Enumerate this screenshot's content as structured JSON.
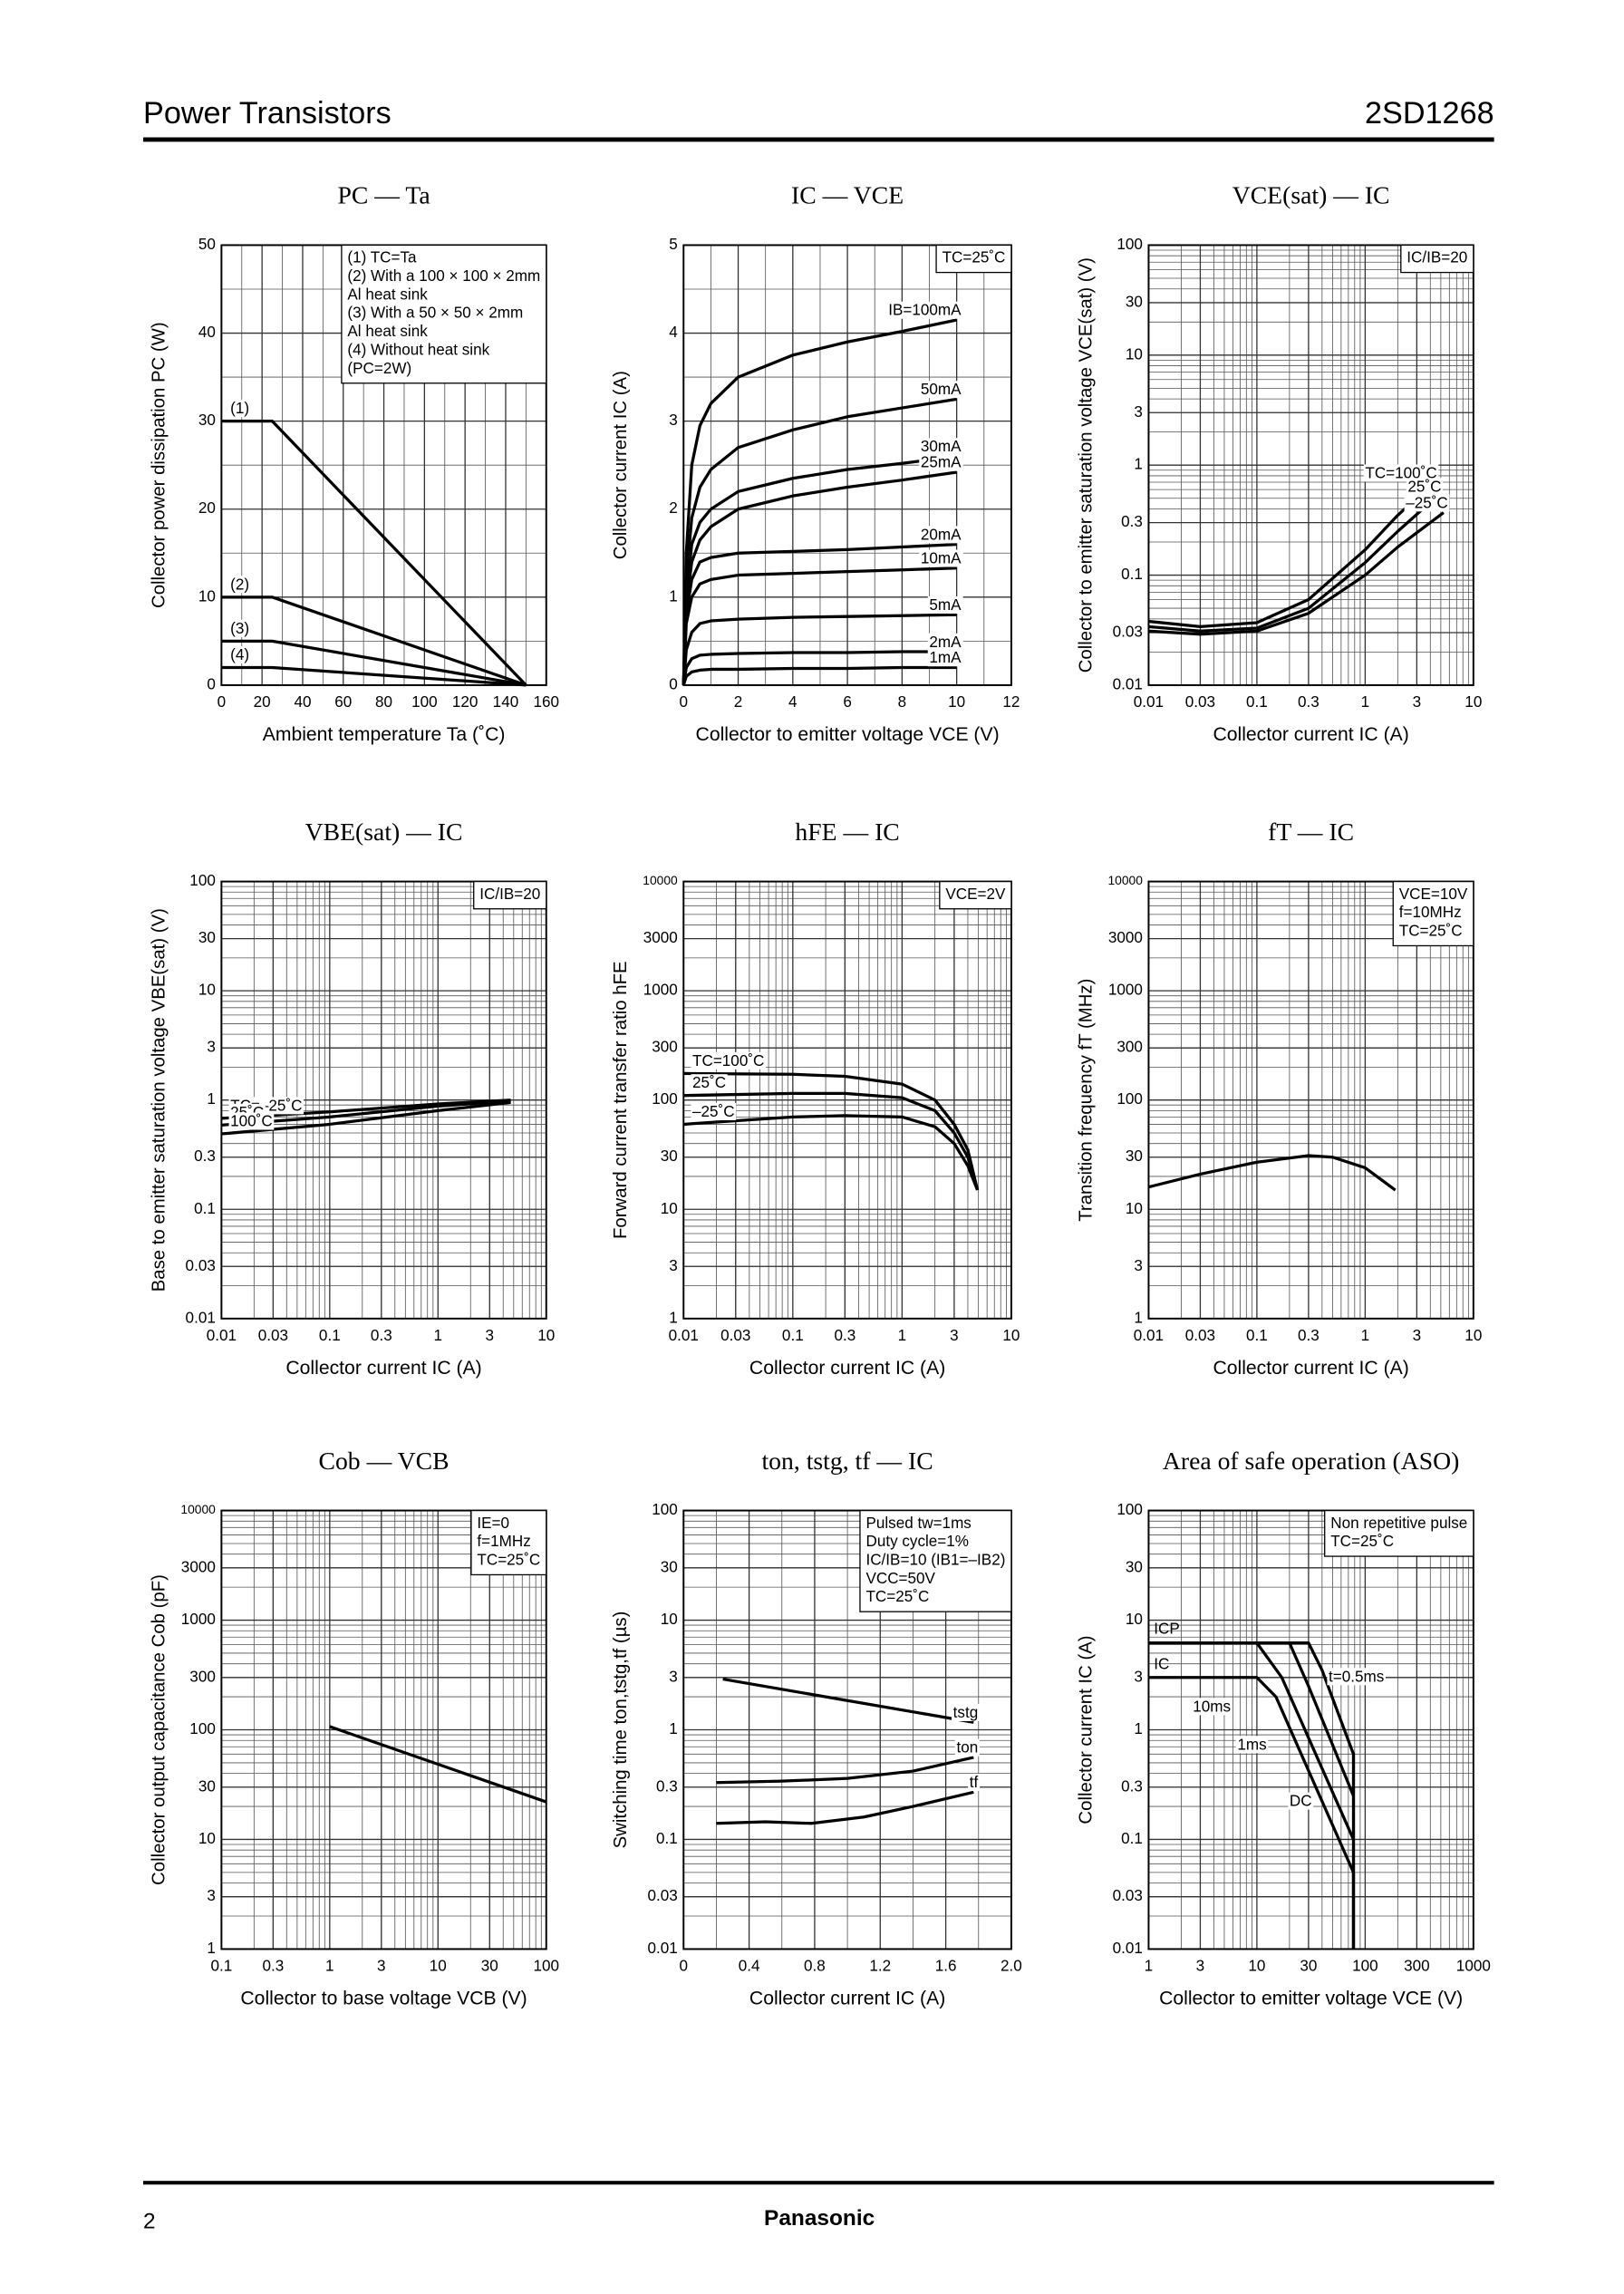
{
  "header": {
    "left": "Power Transistors",
    "right": "2SD1268"
  },
  "footer": {
    "page": "2",
    "brand": "Panasonic"
  },
  "chart_data": [
    {
      "type": "line",
      "title": "PC — Ta",
      "xlabel": "Ambient temperature   Ta  (˚C)",
      "ylabel": "Collector power dissipation   PC   (W)",
      "xscale": "linear",
      "yscale": "linear",
      "xlim": [
        0,
        160
      ],
      "xticks": [
        0,
        20,
        40,
        60,
        80,
        100,
        120,
        140,
        160
      ],
      "ylim": [
        0,
        50
      ],
      "yticks": [
        0,
        10,
        20,
        30,
        40,
        50
      ],
      "grid": true,
      "note_corner": "top right",
      "label_position": "start",
      "notes": [
        "(1) TC=Ta",
        "(2) With a 100 × 100 × 2mm",
        "      Al heat sink",
        "(3) With a 50 × 50 × 2mm",
        "      Al heat sink",
        "(4) Without heat sink",
        "      (PC=2W)"
      ],
      "x": [
        0,
        25,
        150
      ],
      "series": [
        {
          "name": "(1)",
          "color": "#000",
          "values": [
            30,
            30,
            0
          ]
        },
        {
          "name": "(2)",
          "color": "#000",
          "values": [
            10,
            10,
            0
          ]
        },
        {
          "name": "(3)",
          "color": "#000",
          "values": [
            5,
            5,
            0
          ]
        },
        {
          "name": "(4)",
          "color": "#000",
          "values": [
            2,
            2,
            0
          ]
        }
      ]
    },
    {
      "type": "line",
      "title": "IC — VCE",
      "xlabel": "Collector to emitter voltage   VCE   (V)",
      "ylabel": "Collector current   IC   (A)",
      "xscale": "linear",
      "yscale": "linear",
      "xlim": [
        0,
        12
      ],
      "xticks": [
        0,
        2,
        4,
        6,
        8,
        10,
        12
      ],
      "ylim": [
        0,
        5
      ],
      "yticks": [
        0,
        1,
        2,
        3,
        4,
        5
      ],
      "grid": true,
      "note_corner": "top right",
      "label_position": "end",
      "notes": [
        "TC=25˚C"
      ],
      "x": [
        0,
        0.1,
        0.3,
        0.6,
        1,
        2,
        4,
        6,
        8,
        10
      ],
      "series": [
        {
          "name": "IB=100mA",
          "color": "#000",
          "values": [
            0,
            1.5,
            2.5,
            2.95,
            3.2,
            3.5,
            3.75,
            3.9,
            4.02,
            4.15
          ]
        },
        {
          "name": "50mA",
          "color": "#000",
          "values": [
            0,
            1.2,
            1.9,
            2.25,
            2.45,
            2.7,
            2.9,
            3.05,
            3.15,
            3.25
          ]
        },
        {
          "name": "30mA",
          "color": "#000",
          "values": [
            0,
            1.0,
            1.6,
            1.85,
            2.0,
            2.2,
            2.35,
            2.45,
            2.52,
            2.6
          ]
        },
        {
          "name": "25mA",
          "color": "#000",
          "values": [
            0,
            0.9,
            1.4,
            1.65,
            1.8,
            2.0,
            2.15,
            2.25,
            2.33,
            2.42
          ]
        },
        {
          "name": "20mA",
          "color": "#000",
          "values": [
            0,
            0.8,
            1.2,
            1.4,
            1.45,
            1.5,
            1.52,
            1.54,
            1.57,
            1.6
          ]
        },
        {
          "name": "10mA",
          "color": "#000",
          "values": [
            0,
            0.7,
            1.0,
            1.15,
            1.2,
            1.25,
            1.27,
            1.29,
            1.31,
            1.33
          ]
        },
        {
          "name": "5mA",
          "color": "#000",
          "values": [
            0,
            0.4,
            0.6,
            0.7,
            0.73,
            0.75,
            0.77,
            0.78,
            0.79,
            0.8
          ]
        },
        {
          "name": "2mA",
          "color": "#000",
          "values": [
            0,
            0.2,
            0.3,
            0.34,
            0.35,
            0.36,
            0.37,
            0.37,
            0.38,
            0.38
          ]
        },
        {
          "name": "1mA",
          "color": "#000",
          "values": [
            0,
            0.1,
            0.15,
            0.17,
            0.18,
            0.18,
            0.19,
            0.19,
            0.2,
            0.2
          ]
        }
      ]
    },
    {
      "type": "line",
      "title": "VCE(sat) — IC",
      "xlabel": "Collector current   IC   (A)",
      "ylabel": "Collector to emitter saturation voltage   VCE(sat)   (V)",
      "xscale": "log",
      "yscale": "log",
      "xlim": [
        0.01,
        10
      ],
      "xticks": [
        0.01,
        0.03,
        0.1,
        0.3,
        1,
        3,
        10
      ],
      "ylim": [
        0.01,
        100
      ],
      "yticks": [
        0.01,
        0.03,
        0.1,
        0.3,
        1,
        3,
        10,
        30,
        100
      ],
      "grid": true,
      "note_corner": "top right",
      "label_position": "end",
      "notes": [
        "IC/IB=20"
      ],
      "series": [
        {
          "name": "TC=100˚C",
          "color": "#000",
          "x": [
            0.01,
            0.03,
            0.1,
            0.3,
            1,
            2,
            4.2
          ],
          "values": [
            0.038,
            0.034,
            0.037,
            0.06,
            0.17,
            0.35,
            0.69
          ]
        },
        {
          "name": "25˚C",
          "color": "#000",
          "x": [
            0.01,
            0.03,
            0.1,
            0.3,
            1,
            2,
            4.6
          ],
          "values": [
            0.034,
            0.031,
            0.033,
            0.05,
            0.13,
            0.25,
            0.52
          ]
        },
        {
          "name": "–25˚C",
          "color": "#000",
          "x": [
            0.01,
            0.03,
            0.1,
            0.3,
            1,
            2,
            5.3
          ],
          "values": [
            0.031,
            0.029,
            0.031,
            0.045,
            0.1,
            0.18,
            0.37
          ]
        }
      ]
    },
    {
      "type": "line",
      "title": "VBE(sat) — IC",
      "xlabel": "Collector current   IC   (A)",
      "ylabel": "Base to emitter saturation voltage   VBE(sat)   (V)",
      "xscale": "log",
      "yscale": "log",
      "xlim": [
        0.01,
        10
      ],
      "xticks": [
        0.01,
        0.03,
        0.1,
        0.3,
        1,
        3,
        10
      ],
      "ylim": [
        0.01,
        100
      ],
      "yticks": [
        0.01,
        0.03,
        0.1,
        0.3,
        1,
        3,
        10,
        30,
        100
      ],
      "grid": true,
      "note_corner": "top right",
      "label_position": "start",
      "notes": [
        "IC/IB=20"
      ],
      "x": [
        0.01,
        0.1,
        1,
        4.7
      ],
      "series": [
        {
          "name": "TC=–25˚C",
          "color": "#000",
          "values": [
            0.68,
            0.78,
            0.92,
            1.0
          ]
        },
        {
          "name": "25˚C",
          "color": "#000",
          "values": [
            0.59,
            0.7,
            0.88,
            0.98
          ]
        },
        {
          "name": "100˚C",
          "color": "#000",
          "values": [
            0.49,
            0.6,
            0.8,
            0.95
          ]
        }
      ]
    },
    {
      "type": "line",
      "title": "hFE — IC",
      "xlabel": "Collector current   IC   (A)",
      "ylabel": "Forward current transfer ratio  hFE",
      "xscale": "log",
      "yscale": "log",
      "xlim": [
        0.01,
        10
      ],
      "xticks": [
        0.01,
        0.03,
        0.1,
        0.3,
        1,
        3,
        10
      ],
      "ylim": [
        1,
        10000
      ],
      "yticks": [
        1,
        3,
        10,
        30,
        100,
        300,
        1000,
        3000,
        10000
      ],
      "grid": true,
      "note_corner": "top right",
      "label_position": "start",
      "notes": [
        "VCE=2V"
      ],
      "x": [
        0.01,
        0.1,
        0.3,
        1,
        2,
        3,
        4,
        4.9
      ],
      "series": [
        {
          "name": "TC=100˚C",
          "color": "#000",
          "values": [
            175,
            172,
            165,
            140,
            100,
            60,
            35,
            15
          ]
        },
        {
          "name": "25˚C",
          "color": "#000",
          "values": [
            110,
            115,
            115,
            105,
            80,
            50,
            30,
            15
          ]
        },
        {
          "name": "–25˚C",
          "color": "#000",
          "values": [
            60,
            70,
            72,
            70,
            57,
            40,
            25,
            15
          ]
        }
      ]
    },
    {
      "type": "line",
      "title": "fT — IC",
      "xlabel": "Collector current   IC   (A)",
      "ylabel": "Transition frequency   fT   (MHz)",
      "xscale": "log",
      "yscale": "log",
      "xlim": [
        0.01,
        10
      ],
      "xticks": [
        0.01,
        0.03,
        0.1,
        0.3,
        1,
        3,
        10
      ],
      "ylim": [
        1,
        10000
      ],
      "yticks": [
        1,
        3,
        10,
        30,
        100,
        300,
        1000,
        3000,
        10000
      ],
      "grid": true,
      "note_corner": "top right",
      "notes": [
        "VCE=10V",
        "f=10MHz",
        "TC=25˚C"
      ],
      "x": [
        0.01,
        0.03,
        0.1,
        0.3,
        0.5,
        1,
        1.9
      ],
      "series": [
        {
          "color": "#000",
          "values": [
            16,
            21,
            27,
            31,
            30,
            24,
            15
          ]
        }
      ]
    },
    {
      "type": "line",
      "title": "Cob — VCB",
      "xlabel": "Collector to base voltage   VCB   (V)",
      "ylabel": "Collector output capacitance   Cob   (pF)",
      "xscale": "log",
      "yscale": "log",
      "xlim": [
        0.1,
        100
      ],
      "xticks": [
        0.1,
        0.3,
        1,
        3,
        10,
        30,
        100
      ],
      "ylim": [
        1,
        10000
      ],
      "yticks": [
        1,
        3,
        10,
        30,
        100,
        300,
        1000,
        3000,
        10000
      ],
      "grid": true,
      "note_corner": "top right",
      "notes": [
        "IE=0",
        "f=1MHz",
        "TC=25˚C"
      ],
      "x": [
        1,
        100
      ],
      "series": [
        {
          "color": "#000",
          "values": [
            107,
            22
          ]
        }
      ]
    },
    {
      "type": "line",
      "title": "ton, tstg, tf — IC",
      "xlabel": "Collector current   IC   (A)",
      "ylabel": "Switching time   ton,tstg,tf   (µs)",
      "xscale": "linear",
      "yscale": "log",
      "xlim": [
        0,
        2
      ],
      "xticks": [
        0,
        0.4,
        0.8,
        1.2,
        1.6,
        {
          "value": 2,
          "label": "2.0"
        }
      ],
      "ylim": [
        0.01,
        100
      ],
      "yticks": [
        0.01,
        0.03,
        0.1,
        0.3,
        1,
        3,
        10,
        30,
        100
      ],
      "grid": true,
      "note_corner": "top right",
      "label_position": "end",
      "notes": [
        "Pulsed tw=1ms",
        "Duty cycle=1%",
        "IC/IB=10 (IB1=–IB2)",
        "VCC=50V",
        "TC=25˚C"
      ],
      "series": [
        {
          "name": "tstg",
          "color": "#000",
          "x": [
            0.24,
            1.77
          ],
          "values": [
            2.9,
            1.17
          ]
        },
        {
          "name": "ton",
          "color": "#000",
          "x": [
            0.2,
            0.6,
            1.0,
            1.4,
            1.77
          ],
          "values": [
            0.33,
            0.34,
            0.36,
            0.42,
            0.56
          ]
        },
        {
          "name": "tf",
          "color": "#000",
          "x": [
            0.2,
            0.5,
            0.78,
            1.1,
            1.4,
            1.77
          ],
          "values": [
            0.14,
            0.145,
            0.14,
            0.16,
            0.2,
            0.27
          ]
        }
      ]
    },
    {
      "type": "line",
      "title": "Area of safe operation (ASO)",
      "xlabel": "Collector to emitter voltage   VCE   (V)",
      "ylabel": "Collector current   IC   (A)",
      "xscale": "log",
      "yscale": "log",
      "xlim": [
        1,
        1000
      ],
      "xticks": [
        1,
        3,
        10,
        30,
        100,
        300,
        1000
      ],
      "ylim": [
        0.01,
        100
      ],
      "yticks": [
        0.01,
        0.03,
        0.1,
        0.3,
        1,
        3,
        10,
        30,
        100
      ],
      "grid": true,
      "note_corner": "top right",
      "label_position": "free",
      "notes": [
        "Non repetitive pulse",
        "TC=25˚C"
      ],
      "annotations": [
        "ICP",
        "IC"
      ],
      "series": [
        {
          "name": "t=0.5ms",
          "color": "#000",
          "x": [
            1,
            30,
            40,
            78,
            78
          ],
          "values": [
            6.2,
            6.2,
            3.5,
            0.6,
            0.01
          ]
        },
        {
          "name": "1ms",
          "color": "#000",
          "x": [
            1,
            20,
            30,
            78
          ],
          "values": [
            6.2,
            6.2,
            2.5,
            0.25
          ]
        },
        {
          "name": "10ms",
          "color": "#000",
          "x": [
            1,
            10,
            17,
            78
          ],
          "values": [
            6.2,
            6.2,
            3,
            0.1
          ]
        },
        {
          "name": "DC",
          "color": "#000",
          "x": [
            1,
            10,
            15,
            78,
            78
          ],
          "values": [
            3,
            3,
            2,
            0.05,
            0.01
          ]
        }
      ]
    }
  ]
}
